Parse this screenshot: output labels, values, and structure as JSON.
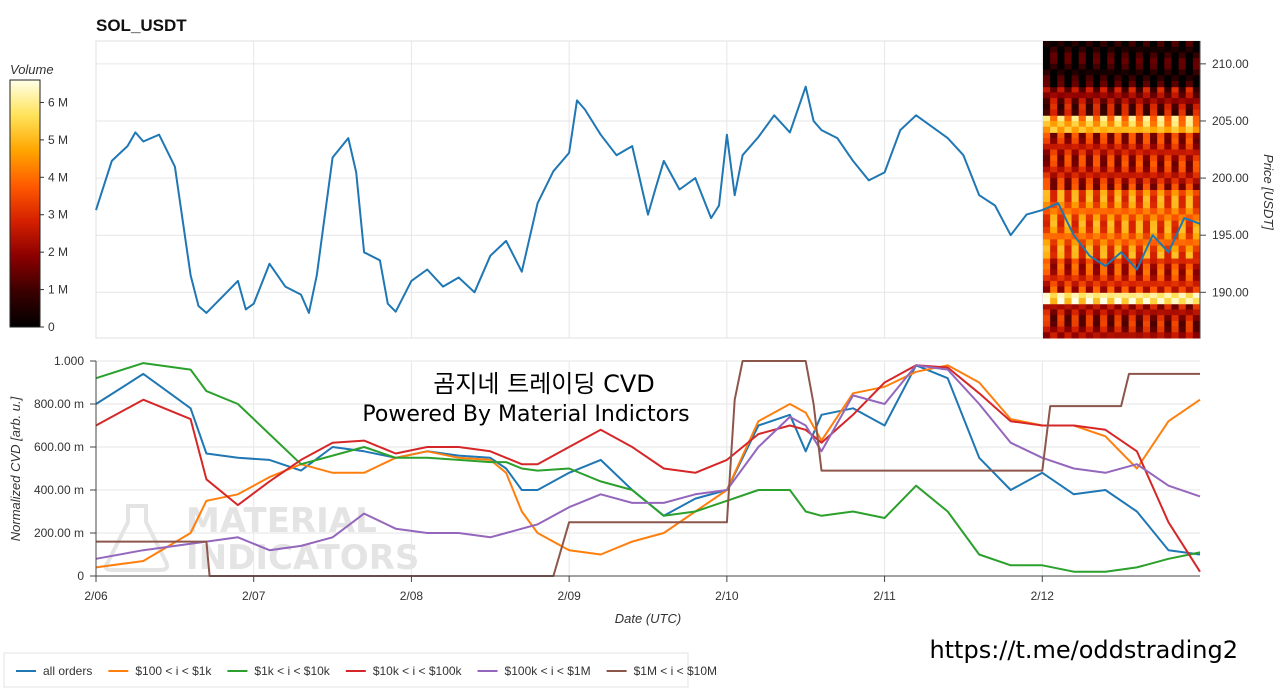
{
  "chart_data": [
    {
      "type": "line",
      "title": "SOL_USDT",
      "xlabel": "",
      "ylabel": "Price [USDT]",
      "ylim": [
        186,
        212
      ],
      "y_ticks": [
        "210.00",
        "205.00",
        "200.00",
        "195.00",
        "190.00"
      ],
      "y_tick_values": [
        210,
        205,
        200,
        195,
        190
      ],
      "x_range_days": [
        6.0,
        13.0
      ],
      "series": [
        {
          "name": "price",
          "color": "#1f77b4",
          "x": [
            6.0,
            6.1,
            6.2,
            6.25,
            6.3,
            6.4,
            6.5,
            6.6,
            6.65,
            6.7,
            6.8,
            6.9,
            6.95,
            7.0,
            7.1,
            7.2,
            7.3,
            7.35,
            7.4,
            7.5,
            7.6,
            7.65,
            7.7,
            7.8,
            7.85,
            7.9,
            8.0,
            8.1,
            8.2,
            8.3,
            8.4,
            8.5,
            8.6,
            8.7,
            8.8,
            8.9,
            9.0,
            9.05,
            9.1,
            9.2,
            9.3,
            9.4,
            9.5,
            9.55,
            9.6,
            9.7,
            9.8,
            9.9,
            9.95,
            10.0,
            10.05,
            10.1,
            10.2,
            10.3,
            10.4,
            10.5,
            10.55,
            10.6,
            10.7,
            10.8,
            10.9,
            11.0,
            11.1,
            11.2,
            11.3,
            11.4,
            11.5,
            11.6,
            11.7,
            11.8,
            11.9,
            12.0,
            12.1,
            12.2,
            12.3,
            12.4,
            12.5,
            12.6,
            12.7,
            12.8,
            12.9,
            13.0
          ],
          "values": [
            197.2,
            201.5,
            202.8,
            204.0,
            203.2,
            203.8,
            201.0,
            191.5,
            188.8,
            188.2,
            189.6,
            191.0,
            188.5,
            189.0,
            192.5,
            190.5,
            189.8,
            188.2,
            191.5,
            201.8,
            203.5,
            200.5,
            193.5,
            192.8,
            189.0,
            188.3,
            191.0,
            192.0,
            190.5,
            191.3,
            190.0,
            193.2,
            194.5,
            191.8,
            197.8,
            200.6,
            202.2,
            206.8,
            206.0,
            203.8,
            202.0,
            202.8,
            196.8,
            199.2,
            201.5,
            199.0,
            200.0,
            196.5,
            197.6,
            203.8,
            198.5,
            202.0,
            203.6,
            205.5,
            204.0,
            208.0,
            205.0,
            204.2,
            203.5,
            201.5,
            199.8,
            200.5,
            204.2,
            205.5,
            204.5,
            203.5,
            202.0,
            198.5,
            197.6,
            195.0,
            196.8,
            197.2,
            197.8,
            195.0,
            193.2,
            192.3,
            193.5,
            192.0,
            195.0,
            193.5,
            196.5,
            196.0
          ]
        }
      ]
    },
    {
      "type": "line",
      "title": "",
      "xlabel": "Date (UTC)",
      "ylabel": "Normalized CVD [arb. u.]",
      "ylim": [
        0,
        1
      ],
      "y_ticks": [
        "1.000",
        "800.00 m",
        "600.00 m",
        "400.00 m",
        "200.00 m",
        "0"
      ],
      "y_tick_values": [
        1.0,
        0.8,
        0.6,
        0.4,
        0.2,
        0.0
      ],
      "x_tick_labels": [
        "2/06",
        "2/07",
        "2/08",
        "2/09",
        "2/10",
        "2/11",
        "2/12"
      ],
      "x_tick_values": [
        6,
        7,
        8,
        9,
        10,
        11,
        12
      ],
      "x": [
        6.0,
        6.3,
        6.6,
        6.7,
        6.9,
        7.1,
        7.3,
        7.5,
        7.7,
        7.9,
        8.1,
        8.3,
        8.5,
        8.6,
        8.7,
        8.8,
        9.0,
        9.2,
        9.4,
        9.6,
        9.8,
        10.0,
        10.2,
        10.4,
        10.5,
        10.6,
        10.8,
        11.0,
        11.2,
        11.4,
        11.6,
        11.8,
        12.0,
        12.2,
        12.4,
        12.6,
        12.8,
        13.0
      ],
      "series": [
        {
          "name": "all orders",
          "color": "#1f77b4",
          "values": [
            0.8,
            0.94,
            0.78,
            0.57,
            0.55,
            0.54,
            0.49,
            0.6,
            0.58,
            0.55,
            0.58,
            0.56,
            0.55,
            0.5,
            0.4,
            0.4,
            0.48,
            0.54,
            0.4,
            0.28,
            0.36,
            0.4,
            0.7,
            0.75,
            0.58,
            0.75,
            0.78,
            0.7,
            0.98,
            0.92,
            0.55,
            0.4,
            0.48,
            0.38,
            0.4,
            0.3,
            0.12,
            0.1
          ]
        },
        {
          "name": "$100 < i < $1k",
          "color": "#ff7f0e",
          "values": [
            0.04,
            0.07,
            0.2,
            0.35,
            0.38,
            0.46,
            0.52,
            0.48,
            0.48,
            0.55,
            0.58,
            0.55,
            0.54,
            0.48,
            0.3,
            0.2,
            0.12,
            0.1,
            0.16,
            0.2,
            0.3,
            0.4,
            0.72,
            0.8,
            0.76,
            0.63,
            0.85,
            0.88,
            0.95,
            0.98,
            0.9,
            0.73,
            0.7,
            0.7,
            0.65,
            0.5,
            0.72,
            0.82
          ]
        },
        {
          "name": "$1k < i < $10k",
          "color": "#2ca02c",
          "values": [
            0.92,
            0.99,
            0.96,
            0.86,
            0.8,
            0.66,
            0.52,
            0.56,
            0.6,
            0.55,
            0.55,
            0.54,
            0.53,
            0.53,
            0.5,
            0.49,
            0.5,
            0.44,
            0.4,
            0.28,
            0.3,
            0.35,
            0.4,
            0.4,
            0.3,
            0.28,
            0.3,
            0.27,
            0.42,
            0.3,
            0.1,
            0.05,
            0.05,
            0.02,
            0.02,
            0.04,
            0.08,
            0.11
          ]
        },
        {
          "name": "$10k < i < $100k",
          "color": "#d62728",
          "values": [
            0.7,
            0.82,
            0.73,
            0.45,
            0.33,
            0.44,
            0.54,
            0.62,
            0.63,
            0.57,
            0.6,
            0.6,
            0.58,
            0.55,
            0.52,
            0.52,
            0.6,
            0.68,
            0.6,
            0.5,
            0.48,
            0.54,
            0.66,
            0.7,
            0.68,
            0.62,
            0.75,
            0.9,
            0.98,
            0.97,
            0.85,
            0.72,
            0.7,
            0.7,
            0.68,
            0.58,
            0.25,
            0.02
          ]
        },
        {
          "name": "$100k < i < $1M",
          "color": "#9467bd",
          "values": [
            0.08,
            0.12,
            0.15,
            0.16,
            0.18,
            0.12,
            0.14,
            0.18,
            0.29,
            0.22,
            0.2,
            0.2,
            0.18,
            0.2,
            0.22,
            0.24,
            0.32,
            0.38,
            0.34,
            0.34,
            0.38,
            0.4,
            0.6,
            0.74,
            0.7,
            0.58,
            0.84,
            0.8,
            0.98,
            0.96,
            0.8,
            0.62,
            0.55,
            0.5,
            0.48,
            0.52,
            0.42,
            0.37
          ]
        },
        {
          "name": "$1M < i < $10M",
          "color": "#8c564b",
          "step": true,
          "x": [
            6.0,
            6.7,
            6.72,
            8.9,
            9.0,
            9.2,
            9.8,
            10.0,
            10.05,
            10.1,
            10.5,
            10.55,
            10.6,
            12.0,
            12.05,
            12.5,
            12.55,
            13.0
          ],
          "values": [
            0.16,
            0.16,
            0.0,
            0.0,
            0.25,
            0.25,
            0.25,
            0.25,
            0.82,
            1.0,
            1.0,
            0.8,
            0.49,
            0.49,
            0.79,
            0.79,
            0.94,
            0.94
          ]
        }
      ]
    }
  ],
  "colorbar": {
    "title": "Volume",
    "ticks": [
      "6 M",
      "5 M",
      "4 M",
      "3 M",
      "2 M",
      "1 M",
      "0"
    ],
    "tick_values": [
      6,
      5,
      4,
      3,
      2,
      1,
      0
    ],
    "max": 6.6,
    "colors": [
      "#000000",
      "#3a0000",
      "#8b0000",
      "#d42000",
      "#ff5a00",
      "#ffa500",
      "#ffe35a",
      "#ffffe8"
    ]
  },
  "heatmap": {
    "price_bands": [
      {
        "from": 186,
        "to": 189,
        "level": 0.35
      },
      {
        "from": 189,
        "to": 190,
        "level": 0.9
      },
      {
        "from": 190,
        "to": 193,
        "level": 0.45
      },
      {
        "from": 193,
        "to": 199,
        "level": 0.6
      },
      {
        "from": 199,
        "to": 204,
        "level": 0.4
      },
      {
        "from": 204,
        "to": 205.5,
        "level": 0.75
      },
      {
        "from": 205.5,
        "to": 208,
        "level": 0.3
      },
      {
        "from": 208,
        "to": 212,
        "level": 0.05
      }
    ]
  },
  "overlay": {
    "line1": "곰지네 트레이딩 CVD",
    "line2": "Powered By Material Indictors",
    "watermark_line1": "MATERIAL",
    "watermark_line2": "INDICATORS",
    "link": "https://t.me/oddstrading2"
  },
  "legend": [
    {
      "label": "all orders",
      "color": "#1f77b4"
    },
    {
      "label": "$100 < i < $1k",
      "color": "#ff7f0e"
    },
    {
      "label": "$1k < i < $10k",
      "color": "#2ca02c"
    },
    {
      "label": "$10k < i < $100k",
      "color": "#d62728"
    },
    {
      "label": "$100k < i < $1M",
      "color": "#9467bd"
    },
    {
      "label": "$1M < i < $10M",
      "color": "#8c564b"
    }
  ]
}
